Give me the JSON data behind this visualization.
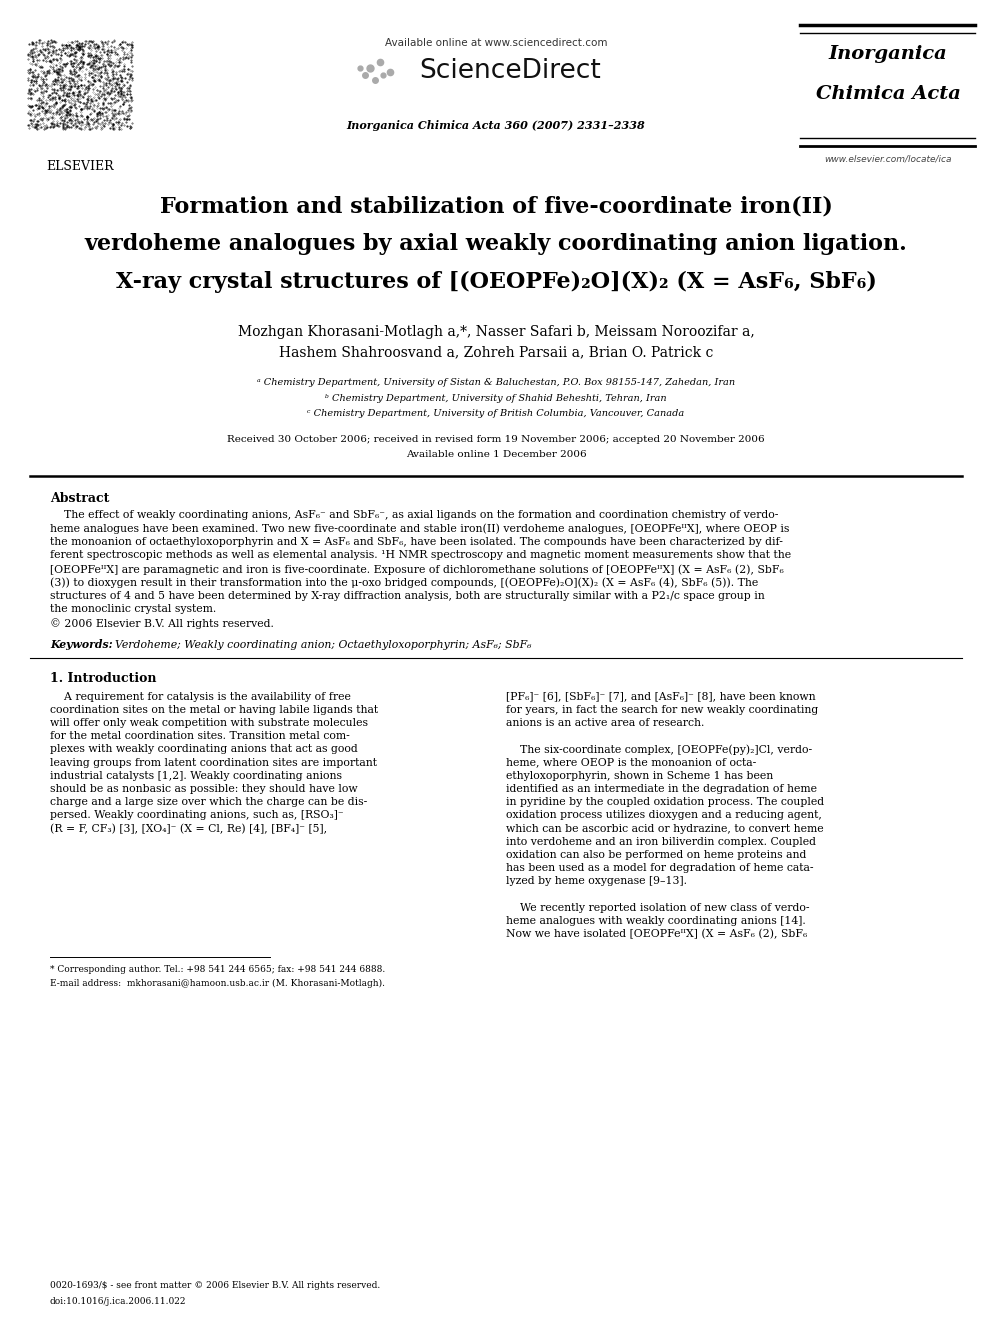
{
  "background_color": "#ffffff",
  "page_width": 9.92,
  "page_height": 13.23,
  "dpi": 100,
  "header": {
    "elsevier_logo_text": "ELSEVIER",
    "available_online": "Available online at www.sciencedirect.com",
    "sciencedirect": "ScienceDirect",
    "journal_info": "Inorganica Chimica Acta 360 (2007) 2331–2338",
    "journal_name_line1": "Inorganica",
    "journal_name_line2": "Chimica Acta",
    "website": "www.elsevier.com/locate/ica"
  },
  "title_line1": "Formation and stabilization of five-coordinate iron(II)",
  "title_line2": "verdoheme analogues by axial weakly coordinating anion ligation.",
  "title_line3": "X-ray crystal structures of [(OEOPFe)₂O](X)₂ (X = AsF₆, SbF₆)",
  "author_line1": "Mozhgan Khorasani-Motlagh a,*, Nasser Safari b, Meissam Noroozifar a,",
  "author_line2": "Hashem Shahroosvand a, Zohreh Parsaii a, Brian O. Patrick c",
  "affil_a": "ᵃ Chemistry Department, University of Sistan & Baluchestan, P.O. Box 98155-147, Zahedan, Iran",
  "affil_b": "ᵇ Chemistry Department, University of Shahid Beheshti, Tehran, Iran",
  "affil_c": "ᶜ Chemistry Department, University of British Columbia, Vancouver, Canada",
  "date_line1": "Received 30 October 2006; received in revised form 19 November 2006; accepted 20 November 2006",
  "date_line2": "Available online 1 December 2006",
  "abstract_title": "Abstract",
  "abstract_lines": [
    "    The effect of weakly coordinating anions, AsF₆⁻ and SbF₆⁻, as axial ligands on the formation and coordination chemistry of verdo-",
    "heme analogues have been examined. Two new five-coordinate and stable iron(II) verdoheme analogues, [OEOPFeᴵᴵX], where OEOP is",
    "the monoanion of octaethyloxoporphyrin and X = AsF₆ and SbF₆, have been isolated. The compounds have been characterized by dif-",
    "ferent spectroscopic methods as well as elemental analysis. ¹H NMR spectroscopy and magnetic moment measurements show that the",
    "[OEOPFeᴵᴵX] are paramagnetic and iron is five-coordinate. Exposure of dichloromethane solutions of [OEOPFeᴵᴵX] (X = AsF₆ (2), SbF₆",
    "(3)) to dioxygen result in their transformation into the μ-oxo bridged compounds, [(OEOPFe)₂O](X)₂ (X = AsF₆ (4), SbF₆ (5)). The",
    "structures of 4 and 5 have been determined by X-ray diffraction analysis, both are structurally similar with a P2₁/c space group in",
    "the monoclinic crystal system.",
    "© 2006 Elsevier B.V. All rights reserved."
  ],
  "keywords_label": "Keywords:",
  "keywords_text": "  Verdoheme; Weakly coordinating anion; Octaethyloxoporphyrin; AsF₆; SbF₆",
  "sec1_title": "1. Introduction",
  "col1_lines": [
    "    A requirement for catalysis is the availability of free",
    "coordination sites on the metal or having labile ligands that",
    "will offer only weak competition with substrate molecules",
    "for the metal coordination sites. Transition metal com-",
    "plexes with weakly coordinating anions that act as good",
    "leaving groups from latent coordination sites are important",
    "industrial catalysts [1,2]. Weakly coordinating anions",
    "should be as nonbasic as possible: they should have low",
    "charge and a large size over which the charge can be dis-",
    "persed. Weakly coordinating anions, such as, [RSO₃]⁻",
    "(R = F, CF₃) [3], [XO₄]⁻ (X = Cl, Re) [4], [BF₄]⁻ [5],"
  ],
  "col2_lines": [
    "[PF₆]⁻ [6], [SbF₆]⁻ [7], and [AsF₆]⁻ [8], have been known",
    "for years, in fact the search for new weakly coordinating",
    "anions is an active area of research.",
    "",
    "    The six-coordinate complex, [OEOPFe(py)₂]Cl, verdo-",
    "heme, where OEOP is the monoanion of octa-",
    "ethyloxoporphyrin, shown in Scheme 1 has been",
    "identified as an intermediate in the degradation of heme",
    "in pyridine by the coupled oxidation process. The coupled",
    "oxidation process utilizes dioxygen and a reducing agent,",
    "which can be ascorbic acid or hydrazine, to convert heme",
    "into verdoheme and an iron biliverdin complex. Coupled",
    "oxidation can also be performed on heme proteins and",
    "has been used as a model for degradation of heme cata-",
    "lyzed by heme oxygenase [9–13].",
    "",
    "    We recently reported isolation of new class of verdo-",
    "heme analogues with weakly coordinating anions [14].",
    "Now we have isolated [OEOPFeᴵᴵX] (X = AsF₆ (2), SbF₆"
  ],
  "footnote_line1": "* Corresponding author. Tel.: +98 541 244 6565; fax: +98 541 244 6888.",
  "footnote_line2": "E-mail address:  mkhorasani@hamoon.usb.ac.ir (M. Khorasani-Motlagh).",
  "footer_line1": "0020-1693/$ - see front matter © 2006 Elsevier B.V. All rights reserved.",
  "footer_line2": "doi:10.1016/j.ica.2006.11.022"
}
